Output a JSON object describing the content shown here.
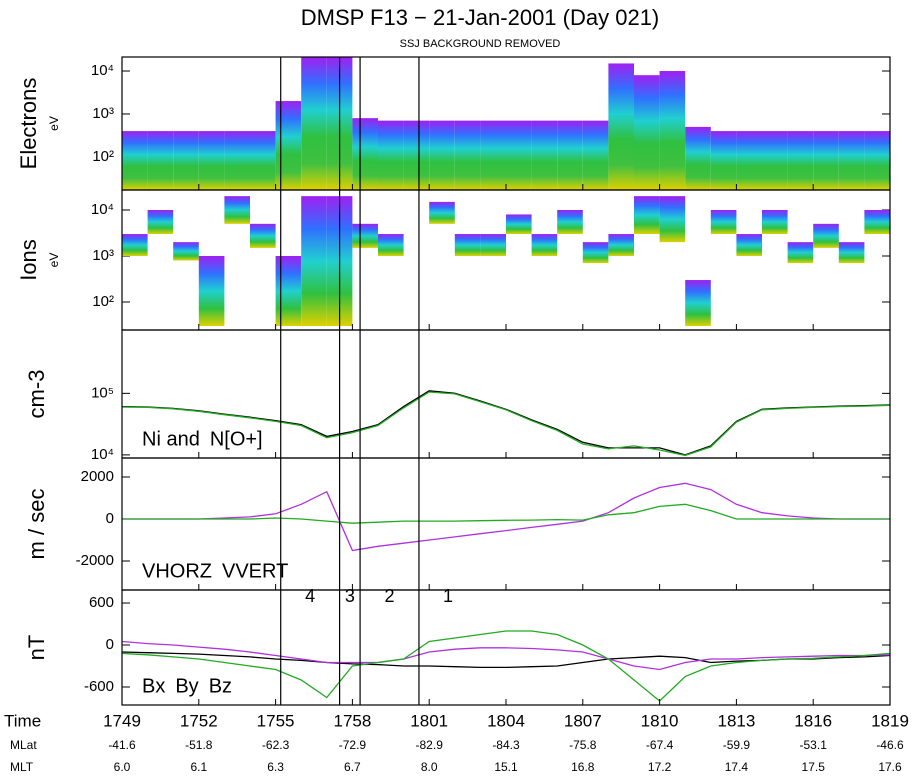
{
  "title": "DMSP F13 − 21-Jan-2001 (Day 021)",
  "subtitle": "SSJ BACKGROUND REMOVED",
  "chart_data": [
    {
      "type": "heatmap",
      "ylabel": "Electrons",
      "yunit": "eV",
      "log": true,
      "ylim": [
        17,
        21200
      ],
      "yticks": [
        {
          "value": 100,
          "label": "10²"
        },
        {
          "value": 1000,
          "label": "10³"
        },
        {
          "value": 10000,
          "label": "10⁴"
        }
      ],
      "colorscale": [
        "#a020f0",
        "#3070ff",
        "#20d0d0",
        "#30c040",
        "#40c040",
        "#e0d000"
      ],
      "x": [
        1069,
        1070,
        1071,
        1072,
        1073,
        1074,
        1075,
        1076,
        1077,
        1078,
        1079,
        1080,
        1081,
        1082,
        1083,
        1084,
        1085,
        1086,
        1087,
        1088,
        1089,
        1090,
        1091,
        1092,
        1093,
        1094,
        1095,
        1096,
        1097,
        1098,
        1099
      ],
      "top": [
        400,
        400,
        400,
        400,
        400,
        400,
        2000,
        25000,
        25000,
        800,
        700,
        700,
        700,
        700,
        700,
        700,
        700,
        700,
        700,
        15000,
        8000,
        10000,
        500,
        400,
        400,
        400,
        400,
        400,
        400,
        400,
        400
      ]
    },
    {
      "type": "heatmap",
      "ylabel": "Ions",
      "yunit": "eV",
      "log": true,
      "ylim": [
        24.6,
        27200
      ],
      "yticks": [
        {
          "value": 100,
          "label": "10²"
        },
        {
          "value": 1000,
          "label": "10³"
        },
        {
          "value": 10000,
          "label": "10⁴"
        }
      ],
      "colorscale": [
        "#a020f0",
        "#3070ff",
        "#20d0d0",
        "#30c040",
        "#e0d000"
      ],
      "x": [
        1069,
        1070,
        1071,
        1072,
        1073,
        1074,
        1075,
        1076,
        1077,
        1078,
        1079,
        1080,
        1081,
        1082,
        1083,
        1084,
        1085,
        1086,
        1087,
        1088,
        1089,
        1090,
        1091,
        1092,
        1093,
        1094,
        1095,
        1096,
        1097,
        1098,
        1099
      ],
      "top": [
        3000,
        10000,
        2000,
        1000,
        20000,
        5000,
        1000,
        20000,
        20000,
        5000,
        3000,
        null,
        15000,
        3000,
        3000,
        8000,
        3000,
        10000,
        2000,
        3000,
        20000,
        20000,
        300,
        10000,
        3000,
        10000,
        2000,
        5000,
        2000,
        10000,
        3000
      ],
      "bottom": [
        1000,
        3000,
        800,
        30,
        5000,
        1500,
        30,
        30,
        30,
        1500,
        1000,
        null,
        5000,
        1000,
        1000,
        3000,
        1000,
        3000,
        700,
        1000,
        3000,
        2000,
        30,
        3000,
        1000,
        3000,
        700,
        1500,
        700,
        3000,
        1000
      ]
    },
    {
      "type": "line",
      "ylabel": "cm-3",
      "log": true,
      "ylim": [
        8900,
        1070000
      ],
      "yticks": [
        {
          "value": 10000,
          "label": "10⁴"
        },
        {
          "value": 100000,
          "label": "10⁵"
        }
      ],
      "x": [
        1069,
        1070,
        1071,
        1072,
        1073,
        1074,
        1075,
        1076,
        1077,
        1078,
        1079,
        1080,
        1081,
        1082,
        1083,
        1084,
        1085,
        1086,
        1087,
        1088,
        1089,
        1090,
        1091,
        1092,
        1093,
        1094,
        1095,
        1096,
        1097,
        1098,
        1099
      ],
      "series": [
        {
          "name": "Ni and",
          "color": "#000000",
          "values": [
            61000,
            60000,
            57000,
            52000,
            46000,
            41000,
            36000,
            31000,
            20000,
            24000,
            31000,
            61000,
            110000,
            100000,
            75000,
            55000,
            37000,
            26000,
            16000,
            13000,
            13000,
            13000,
            10000,
            14000,
            35000,
            55000,
            58000,
            60000,
            62000,
            63000,
            65000
          ]
        },
        {
          "name": "N[O+]",
          "color": "#22aa22",
          "values": [
            60000,
            59000,
            56000,
            51000,
            45000,
            40000,
            35000,
            30000,
            19000,
            23000,
            30000,
            58000,
            105000,
            98000,
            73000,
            54000,
            36000,
            25000,
            15000,
            12500,
            14000,
            12000,
            9800,
            13500,
            34000,
            54000,
            57000,
            59000,
            61000,
            62000,
            64000
          ]
        }
      ]
    },
    {
      "type": "line",
      "ylabel": "m / sec",
      "log": false,
      "ylim": [
        -3381,
        2905
      ],
      "yticks": [
        -2000,
        0,
        2000
      ],
      "x": [
        1069,
        1070,
        1071,
        1072,
        1073,
        1074,
        1075,
        1076,
        1077,
        1078,
        1079,
        1080,
        1081,
        1082,
        1083,
        1084,
        1085,
        1086,
        1087,
        1088,
        1089,
        1090,
        1091,
        1092,
        1093,
        1094,
        1095,
        1096,
        1097,
        1098,
        1099
      ],
      "series": [
        {
          "name": "VHORZ",
          "color": "#b030e0",
          "values": [
            0,
            0,
            0,
            0,
            50,
            100,
            250,
            700,
            1300,
            -1500,
            -1300,
            -1150,
            -1000,
            -850,
            -700,
            -550,
            -400,
            -250,
            -100,
            300,
            1000,
            1500,
            1700,
            1400,
            700,
            300,
            150,
            50,
            0,
            0,
            0
          ]
        },
        {
          "name": "VVERT",
          "color": "#22aa22",
          "values": [
            0,
            0,
            0,
            0,
            0,
            0,
            50,
            0,
            -100,
            -200,
            -150,
            -100,
            -100,
            -100,
            -80,
            -60,
            -50,
            -30,
            -50,
            200,
            300,
            600,
            700,
            400,
            0,
            0,
            0,
            0,
            0,
            0,
            0
          ]
        }
      ]
    },
    {
      "type": "line",
      "ylabel": "nT",
      "log": false,
      "ylim": [
        -857,
        786
      ],
      "yticks": [
        -600,
        0,
        600
      ],
      "x": [
        1069,
        1070,
        1071,
        1072,
        1073,
        1074,
        1075,
        1076,
        1077,
        1078,
        1079,
        1080,
        1081,
        1082,
        1083,
        1084,
        1085,
        1086,
        1087,
        1088,
        1089,
        1090,
        1091,
        1092,
        1093,
        1094,
        1095,
        1096,
        1097,
        1098,
        1099
      ],
      "series": [
        {
          "name": "Bx",
          "color": "#000000",
          "values": [
            -100,
            -110,
            -120,
            -130,
            -150,
            -170,
            -200,
            -220,
            -250,
            -270,
            -280,
            -300,
            -300,
            -310,
            -320,
            -320,
            -310,
            -300,
            -250,
            -200,
            -180,
            -160,
            -180,
            -250,
            -230,
            -220,
            -200,
            -200,
            -180,
            -170,
            -150
          ]
        },
        {
          "name": "By",
          "color": "#b030e0",
          "values": [
            50,
            20,
            0,
            -30,
            -60,
            -100,
            -150,
            -200,
            -250,
            -250,
            -250,
            -200,
            -100,
            -60,
            -40,
            -40,
            -50,
            -70,
            -100,
            -200,
            -300,
            -350,
            -250,
            -200,
            -200,
            -180,
            -170,
            -160,
            -150,
            -150,
            -140
          ]
        },
        {
          "name": "Bz",
          "color": "#22aa22",
          "values": [
            -120,
            -140,
            -170,
            -200,
            -250,
            -300,
            -350,
            -500,
            -750,
            -300,
            -250,
            -200,
            50,
            100,
            150,
            200,
            200,
            150,
            0,
            -200,
            -500,
            -800,
            -450,
            -300,
            -250,
            -220,
            -200,
            -190,
            -170,
            -150,
            -120
          ]
        }
      ]
    }
  ],
  "time_axis": {
    "xlim": [
      1069,
      1099
    ],
    "xticks": [
      {
        "value": 1069,
        "label": "1749"
      },
      {
        "value": 1072,
        "label": "1752"
      },
      {
        "value": 1075,
        "label": "1755"
      },
      {
        "value": 1078,
        "label": "1758"
      },
      {
        "value": 1081,
        "label": "1801"
      },
      {
        "value": 1084,
        "label": "1804"
      },
      {
        "value": 1087,
        "label": "1807"
      },
      {
        "value": 1090,
        "label": "1810"
      },
      {
        "value": 1093,
        "label": "1813"
      },
      {
        "value": 1096,
        "label": "1816"
      },
      {
        "value": 1099,
        "label": "1819"
      }
    ],
    "rows": [
      "Time",
      "MLat",
      "MLT"
    ],
    "mlat": [
      -41.6,
      -51.8,
      -62.3,
      -72.9,
      -82.9,
      -84.3,
      -75.8,
      -67.4,
      -59.9,
      -53.1,
      -46.6
    ],
    "mlt": [
      {
        "value": 6,
        "label": "6.0"
      },
      6.1,
      6.3,
      6.7,
      {
        "value": 8,
        "label": "8.0"
      },
      15.1,
      16.8,
      17.2,
      17.4,
      17.5,
      17.6
    ]
  },
  "boundaries": {
    "x": [
      1075.2,
      1077.5,
      1078.3,
      1080.6
    ],
    "labels": [
      "4",
      "3",
      "2",
      "1"
    ]
  }
}
